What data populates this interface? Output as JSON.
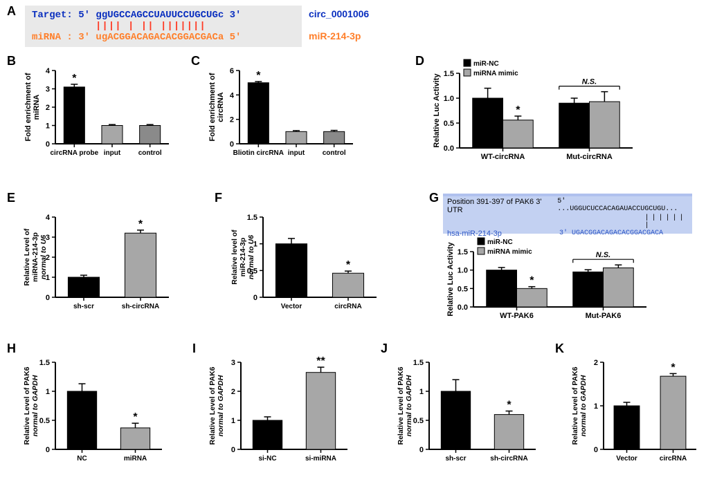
{
  "panel_colors": {
    "black": "#000000",
    "gray_bar": "#a7a7a7",
    "gray_bar2": "#8a8a8a",
    "axis": "#000000",
    "bg": "#ffffff",
    "seq_box": "#e9e9e9",
    "seq_blue": "#0a2fbf",
    "seq_orange": "#ff7f2a",
    "seq_red": "#ff3a24",
    "targetscan_bg": "#c3d1f2",
    "targetscan_header": "#b0c1ee",
    "targetscan_blue_text": "#2a54c4"
  },
  "A": {
    "letter": "A",
    "target_label": "Target: 5'",
    "target_seq": "ggUGCCAGCCUAUUCCUGCUGc 3'",
    "mirna_label": "miRNA : 3'",
    "mirna_seq": "ugACGGACAGACACGGACGACa 5'",
    "pipes": "|||| |  || |||||||",
    "circ_label": "circ_0001006",
    "mir_label": "miR-214-3p"
  },
  "B": {
    "letter": "B",
    "type": "bar",
    "ylabel": "Fold  enrichment of\nmiRNA",
    "ylim": [
      0,
      4
    ],
    "ytick_step": 1,
    "categories": [
      "circRNA probe",
      "input",
      "control"
    ],
    "values": [
      3.1,
      1.0,
      1.0
    ],
    "errors": [
      0.15,
      0.05,
      0.05
    ],
    "bar_colors": [
      "#000000",
      "#a7a7a7",
      "#8a8a8a"
    ],
    "sig": [
      "*",
      "",
      ""
    ],
    "bar_width": 0.55,
    "axis_fontsize": 11
  },
  "C": {
    "letter": "C",
    "type": "bar",
    "ylabel": "Fold  enrichment of\ncircRNA",
    "ylim": [
      0,
      6
    ],
    "ytick_step": 2,
    "categories": [
      "Bliotin circRNA",
      "input",
      "control"
    ],
    "values": [
      5.0,
      1.0,
      1.0
    ],
    "errors": [
      0.1,
      0.08,
      0.1
    ],
    "bar_colors": [
      "#000000",
      "#a7a7a7",
      "#8a8a8a"
    ],
    "sig": [
      "*",
      "",
      ""
    ],
    "bar_width": 0.55
  },
  "D": {
    "letter": "D",
    "type": "grouped-bar",
    "ylabel": "Relative Luc Activity",
    "ylim": [
      0,
      1.5
    ],
    "ytick_step": 0.5,
    "groups": [
      "WT-circRNA",
      "Mut-circRNA"
    ],
    "series": [
      {
        "name": "miR-NC",
        "color": "#000000",
        "values": [
          1.0,
          0.9
        ],
        "errors": [
          0.2,
          0.1
        ]
      },
      {
        "name": "miRNA mimic",
        "color": "#a7a7a7",
        "values": [
          0.56,
          0.93
        ],
        "errors": [
          0.08,
          0.2
        ]
      }
    ],
    "sig_texts": [
      "*",
      "N.S."
    ],
    "bar_width": 0.35
  },
  "E": {
    "letter": "E",
    "type": "bar",
    "ylabel_lines": [
      "Relative Level of",
      "miRNA-214-3p",
      "normal to U6"
    ],
    "ylabel_italic_last": true,
    "ylim": [
      0,
      4
    ],
    "ytick_step": 1,
    "categories": [
      "sh-scr",
      "sh-circRNA"
    ],
    "values": [
      1.0,
      3.2
    ],
    "errors": [
      0.1,
      0.15
    ],
    "bar_colors": [
      "#000000",
      "#a7a7a7"
    ],
    "sig": [
      "",
      "*"
    ],
    "bar_width": 0.55
  },
  "F": {
    "letter": "F",
    "type": "bar",
    "ylabel_lines": [
      "Relative level of",
      "miR-214-3p",
      "normal to U6"
    ],
    "ylabel_italic_last": true,
    "ylim": [
      0,
      1.5
    ],
    "ytick_step": 0.5,
    "categories": [
      "Vector",
      "circRNA"
    ],
    "values": [
      1.0,
      0.45
    ],
    "errors": [
      0.1,
      0.04
    ],
    "bar_colors": [
      "#000000",
      "#a7a7a7"
    ],
    "sig": [
      "",
      "*"
    ],
    "bar_width": 0.55
  },
  "G": {
    "letter": "G",
    "targetscan": {
      "pos_label": "Position 391-397 of PAK6 3' UTR",
      "mir_label": "hsa-miR-214-3p",
      "utr_seq": "5'   ...UGGUCUCCACAGAUACCUGCUGU...",
      "utr_match": "CCUGCUGU",
      "mir_seq": "3'      UGACGGACAGACACGGACGACA",
      "mir_match": "GGACGACA",
      "pipes": "| | | | | | |"
    },
    "chart": {
      "type": "grouped-bar",
      "ylabel": "Relative Luc Activity",
      "ylim": [
        0,
        1.5
      ],
      "ytick_step": 0.5,
      "groups": [
        "WT-PAK6",
        "Mut-PAK6"
      ],
      "series": [
        {
          "name": "miR-NC",
          "color": "#000000",
          "values": [
            1.0,
            0.95
          ],
          "errors": [
            0.07,
            0.06
          ]
        },
        {
          "name": "miRNA mimic",
          "color": "#a7a7a7",
          "values": [
            0.5,
            1.06
          ],
          "errors": [
            0.05,
            0.08
          ]
        }
      ],
      "sig_texts": [
        "*",
        "N.S."
      ],
      "bar_width": 0.35
    }
  },
  "H": {
    "letter": "H",
    "type": "bar",
    "ylabel_lines": [
      "Relative Level of PAK6",
      "normal to GAPDH"
    ],
    "ylabel_italic_last": true,
    "ylim": [
      0,
      1.5
    ],
    "ytick_step": 0.5,
    "categories": [
      "NC",
      "miRNA"
    ],
    "values": [
      1.0,
      0.37
    ],
    "errors": [
      0.13,
      0.08
    ],
    "bar_colors": [
      "#000000",
      "#a7a7a7"
    ],
    "sig": [
      "",
      "*"
    ],
    "bar_width": 0.55
  },
  "I": {
    "letter": "I",
    "type": "bar",
    "ylabel_lines": [
      "Relative Level of PAK6",
      "normal to GAPDH"
    ],
    "ylabel_italic_last": true,
    "ylim": [
      0,
      3
    ],
    "ytick_step": 1,
    "categories": [
      "si-NC",
      "si-miRNA"
    ],
    "values": [
      1.0,
      2.65
    ],
    "errors": [
      0.12,
      0.18
    ],
    "bar_colors": [
      "#000000",
      "#a7a7a7"
    ],
    "sig": [
      "",
      "**"
    ],
    "bar_width": 0.55
  },
  "J": {
    "letter": "J",
    "type": "bar",
    "ylabel_lines": [
      "Relative Level of PAK6",
      "normal to GAPDH"
    ],
    "ylabel_italic_last": true,
    "ylim": [
      0,
      1.5
    ],
    "ytick_step": 0.5,
    "categories": [
      "sh-scr",
      "sh-circRNA"
    ],
    "values": [
      1.0,
      0.6
    ],
    "errors": [
      0.2,
      0.06
    ],
    "bar_colors": [
      "#000000",
      "#a7a7a7"
    ],
    "sig": [
      "",
      "*"
    ],
    "bar_width": 0.55
  },
  "K": {
    "letter": "K",
    "type": "bar",
    "ylabel_lines": [
      "Relative Level of PAK6",
      "normal to GAPDH"
    ],
    "ylabel_italic_last": true,
    "ylim": [
      0,
      2
    ],
    "ytick_step": 1,
    "categories": [
      "Vector",
      "circRNA"
    ],
    "values": [
      1.0,
      1.68
    ],
    "errors": [
      0.08,
      0.06
    ],
    "bar_colors": [
      "#000000",
      "#a7a7a7"
    ],
    "sig": [
      "",
      "*"
    ],
    "bar_width": 0.55
  }
}
